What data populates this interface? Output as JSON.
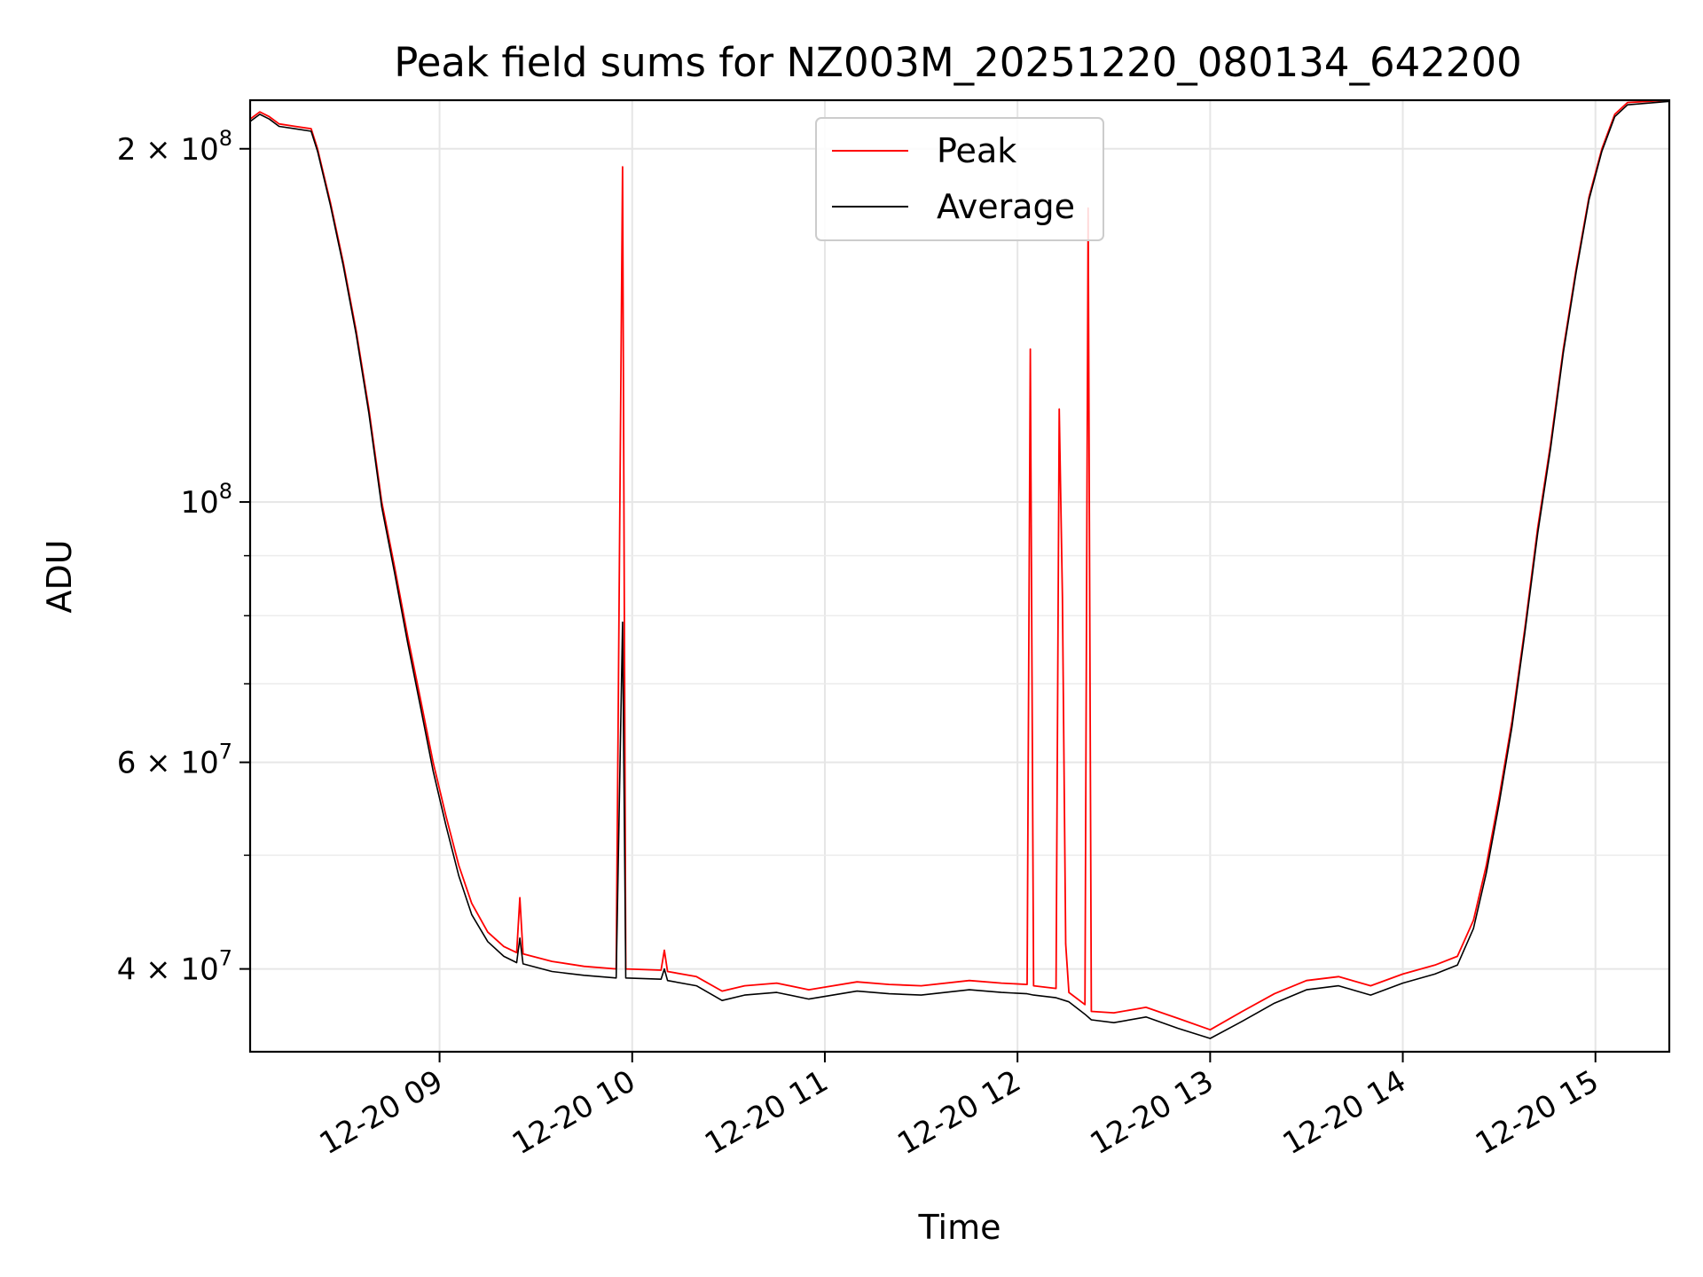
{
  "chart_data": {
    "type": "line",
    "title": "Peak field sums for NZ003M_20251220_080134_642200",
    "xlabel": "Time",
    "ylabel": "ADU",
    "yscale": "log",
    "xlim": [
      "2025-12-20 08:01",
      "2025-12-20 15:23"
    ],
    "ylim": [
      34000000,
      220000000
    ],
    "x_ticks": [
      {
        "t": "2025-12-20 09:00",
        "label": "12-20 09"
      },
      {
        "t": "2025-12-20 10:00",
        "label": "12-20 10"
      },
      {
        "t": "2025-12-20 11:00",
        "label": "12-20 11"
      },
      {
        "t": "2025-12-20 12:00",
        "label": "12-20 12"
      },
      {
        "t": "2025-12-20 13:00",
        "label": "12-20 13"
      },
      {
        "t": "2025-12-20 14:00",
        "label": "12-20 14"
      },
      {
        "t": "2025-12-20 15:00",
        "label": "12-20 15"
      }
    ],
    "y_ticks": [
      {
        "value": 40000000,
        "mantissa": "4",
        "exp": "7"
      },
      {
        "value": 60000000,
        "mantissa": "6",
        "exp": "7"
      },
      {
        "value": 100000000,
        "mantissa": "",
        "exp": "8"
      },
      {
        "value": 200000000,
        "mantissa": "2",
        "exp": "8"
      }
    ],
    "y_minor_ticks": [
      50000000,
      70000000,
      80000000,
      90000000
    ],
    "grid": true,
    "legend_position": "top-center",
    "series": [
      {
        "name": "Peak",
        "color": "#ff0000",
        "points": [
          [
            "2025-12-20 08:01",
            212000000
          ],
          [
            "2025-12-20 08:04",
            215000000
          ],
          [
            "2025-12-20 08:07",
            213000000
          ],
          [
            "2025-12-20 08:10",
            210000000
          ],
          [
            "2025-12-20 08:15",
            209000000
          ],
          [
            "2025-12-20 08:20",
            208000000
          ],
          [
            "2025-12-20 08:22",
            200000000
          ],
          [
            "2025-12-20 08:26",
            180000000
          ],
          [
            "2025-12-20 08:30",
            160000000
          ],
          [
            "2025-12-20 08:34",
            140000000
          ],
          [
            "2025-12-20 08:38",
            120000000
          ],
          [
            "2025-12-20 08:42",
            100000000
          ],
          [
            "2025-12-20 08:46",
            88000000
          ],
          [
            "2025-12-20 08:50",
            77000000
          ],
          [
            "2025-12-20 08:54",
            68000000
          ],
          [
            "2025-12-20 08:58",
            60000000
          ],
          [
            "2025-12-20 09:02",
            54000000
          ],
          [
            "2025-12-20 09:06",
            49000000
          ],
          [
            "2025-12-20 09:10",
            45500000
          ],
          [
            "2025-12-20 09:15",
            43000000
          ],
          [
            "2025-12-20 09:20",
            41800000
          ],
          [
            "2025-12-20 09:24",
            41300000
          ],
          [
            "2025-12-20 09:25",
            46000000
          ],
          [
            "2025-12-20 09:26",
            41200000
          ],
          [
            "2025-12-20 09:35",
            40600000
          ],
          [
            "2025-12-20 09:45",
            40200000
          ],
          [
            "2025-12-20 09:55",
            40000000
          ],
          [
            "2025-12-20 09:57",
            193000000
          ],
          [
            "2025-12-20 09:58",
            40000000
          ],
          [
            "2025-12-20 10:09",
            39900000
          ],
          [
            "2025-12-20 10:10",
            41500000
          ],
          [
            "2025-12-20 10:11",
            39800000
          ],
          [
            "2025-12-20 10:20",
            39400000
          ],
          [
            "2025-12-20 10:28",
            38300000
          ],
          [
            "2025-12-20 10:35",
            38700000
          ],
          [
            "2025-12-20 10:45",
            38900000
          ],
          [
            "2025-12-20 10:55",
            38400000
          ],
          [
            "2025-12-20 11:00",
            38600000
          ],
          [
            "2025-12-20 11:10",
            39000000
          ],
          [
            "2025-12-20 11:20",
            38800000
          ],
          [
            "2025-12-20 11:30",
            38700000
          ],
          [
            "2025-12-20 11:45",
            39100000
          ],
          [
            "2025-12-20 11:55",
            38900000
          ],
          [
            "2025-12-20 12:03",
            38800000
          ],
          [
            "2025-12-20 12:04",
            135000000
          ],
          [
            "2025-12-20 12:05",
            38700000
          ],
          [
            "2025-12-20 12:12",
            38500000
          ],
          [
            "2025-12-20 12:13",
            120000000
          ],
          [
            "2025-12-20 12:14",
            83000000
          ],
          [
            "2025-12-20 12:15",
            42000000
          ],
          [
            "2025-12-20 12:16",
            38200000
          ],
          [
            "2025-12-20 12:21",
            37300000
          ],
          [
            "2025-12-20 12:22",
            178000000
          ],
          [
            "2025-12-20 12:23",
            36800000
          ],
          [
            "2025-12-20 12:30",
            36700000
          ],
          [
            "2025-12-20 12:40",
            37100000
          ],
          [
            "2025-12-20 12:50",
            36300000
          ],
          [
            "2025-12-20 13:00",
            35500000
          ],
          [
            "2025-12-20 13:10",
            36800000
          ],
          [
            "2025-12-20 13:20",
            38100000
          ],
          [
            "2025-12-20 13:30",
            39100000
          ],
          [
            "2025-12-20 13:40",
            39400000
          ],
          [
            "2025-12-20 13:50",
            38700000
          ],
          [
            "2025-12-20 14:00",
            39600000
          ],
          [
            "2025-12-20 14:10",
            40300000
          ],
          [
            "2025-12-20 14:17",
            41000000
          ],
          [
            "2025-12-20 14:22",
            44000000
          ],
          [
            "2025-12-20 14:26",
            49000000
          ],
          [
            "2025-12-20 14:30",
            56000000
          ],
          [
            "2025-12-20 14:34",
            65000000
          ],
          [
            "2025-12-20 14:38",
            78000000
          ],
          [
            "2025-12-20 14:42",
            95000000
          ],
          [
            "2025-12-20 14:46",
            112000000
          ],
          [
            "2025-12-20 14:50",
            135000000
          ],
          [
            "2025-12-20 14:54",
            158000000
          ],
          [
            "2025-12-20 14:58",
            182000000
          ],
          [
            "2025-12-20 15:02",
            200000000
          ],
          [
            "2025-12-20 15:06",
            214000000
          ],
          [
            "2025-12-20 15:10",
            219000000
          ],
          [
            "2025-12-20 15:23",
            220000000
          ]
        ]
      },
      {
        "name": "Average",
        "color": "#000000",
        "points": [
          [
            "2025-12-20 08:01",
            211000000
          ],
          [
            "2025-12-20 08:04",
            214000000
          ],
          [
            "2025-12-20 08:07",
            212000000
          ],
          [
            "2025-12-20 08:10",
            209000000
          ],
          [
            "2025-12-20 08:15",
            208000000
          ],
          [
            "2025-12-20 08:20",
            207000000
          ],
          [
            "2025-12-20 08:22",
            199000000
          ],
          [
            "2025-12-20 08:26",
            179000000
          ],
          [
            "2025-12-20 08:30",
            159000000
          ],
          [
            "2025-12-20 08:34",
            139000000
          ],
          [
            "2025-12-20 08:38",
            119000000
          ],
          [
            "2025-12-20 08:42",
            99000000
          ],
          [
            "2025-12-20 08:46",
            87000000
          ],
          [
            "2025-12-20 08:50",
            76000000
          ],
          [
            "2025-12-20 08:54",
            67000000
          ],
          [
            "2025-12-20 08:58",
            59000000
          ],
          [
            "2025-12-20 09:02",
            53000000
          ],
          [
            "2025-12-20 09:06",
            48000000
          ],
          [
            "2025-12-20 09:10",
            44500000
          ],
          [
            "2025-12-20 09:15",
            42200000
          ],
          [
            "2025-12-20 09:20",
            41000000
          ],
          [
            "2025-12-20 09:24",
            40500000
          ],
          [
            "2025-12-20 09:25",
            42500000
          ],
          [
            "2025-12-20 09:26",
            40400000
          ],
          [
            "2025-12-20 09:35",
            39800000
          ],
          [
            "2025-12-20 09:45",
            39500000
          ],
          [
            "2025-12-20 09:55",
            39300000
          ],
          [
            "2025-12-20 09:57",
            79000000
          ],
          [
            "2025-12-20 09:58",
            39300000
          ],
          [
            "2025-12-20 10:09",
            39200000
          ],
          [
            "2025-12-20 10:10",
            40000000
          ],
          [
            "2025-12-20 10:11",
            39100000
          ],
          [
            "2025-12-20 10:20",
            38700000
          ],
          [
            "2025-12-20 10:28",
            37600000
          ],
          [
            "2025-12-20 10:35",
            38000000
          ],
          [
            "2025-12-20 10:45",
            38200000
          ],
          [
            "2025-12-20 10:55",
            37700000
          ],
          [
            "2025-12-20 11:00",
            37900000
          ],
          [
            "2025-12-20 11:10",
            38300000
          ],
          [
            "2025-12-20 11:20",
            38100000
          ],
          [
            "2025-12-20 11:30",
            38000000
          ],
          [
            "2025-12-20 11:45",
            38400000
          ],
          [
            "2025-12-20 11:55",
            38200000
          ],
          [
            "2025-12-20 12:03",
            38100000
          ],
          [
            "2025-12-20 12:05",
            38000000
          ],
          [
            "2025-12-20 12:12",
            37800000
          ],
          [
            "2025-12-20 12:16",
            37500000
          ],
          [
            "2025-12-20 12:21",
            36600000
          ],
          [
            "2025-12-20 12:23",
            36200000
          ],
          [
            "2025-12-20 12:30",
            36000000
          ],
          [
            "2025-12-20 12:40",
            36400000
          ],
          [
            "2025-12-20 12:50",
            35600000
          ],
          [
            "2025-12-20 13:00",
            34900000
          ],
          [
            "2025-12-20 13:10",
            36100000
          ],
          [
            "2025-12-20 13:20",
            37400000
          ],
          [
            "2025-12-20 13:30",
            38400000
          ],
          [
            "2025-12-20 13:40",
            38700000
          ],
          [
            "2025-12-20 13:50",
            38000000
          ],
          [
            "2025-12-20 14:00",
            38900000
          ],
          [
            "2025-12-20 14:10",
            39600000
          ],
          [
            "2025-12-20 14:17",
            40300000
          ],
          [
            "2025-12-20 14:22",
            43300000
          ],
          [
            "2025-12-20 14:26",
            48300000
          ],
          [
            "2025-12-20 14:30",
            55300000
          ],
          [
            "2025-12-20 14:34",
            64300000
          ],
          [
            "2025-12-20 14:38",
            77300000
          ],
          [
            "2025-12-20 14:42",
            94000000
          ],
          [
            "2025-12-20 14:46",
            111000000
          ],
          [
            "2025-12-20 14:50",
            134000000
          ],
          [
            "2025-12-20 14:54",
            157000000
          ],
          [
            "2025-12-20 14:58",
            181000000
          ],
          [
            "2025-12-20 15:02",
            199000000
          ],
          [
            "2025-12-20 15:06",
            213000000
          ],
          [
            "2025-12-20 15:10",
            218000000
          ],
          [
            "2025-12-20 15:23",
            219500000
          ]
        ]
      }
    ]
  }
}
